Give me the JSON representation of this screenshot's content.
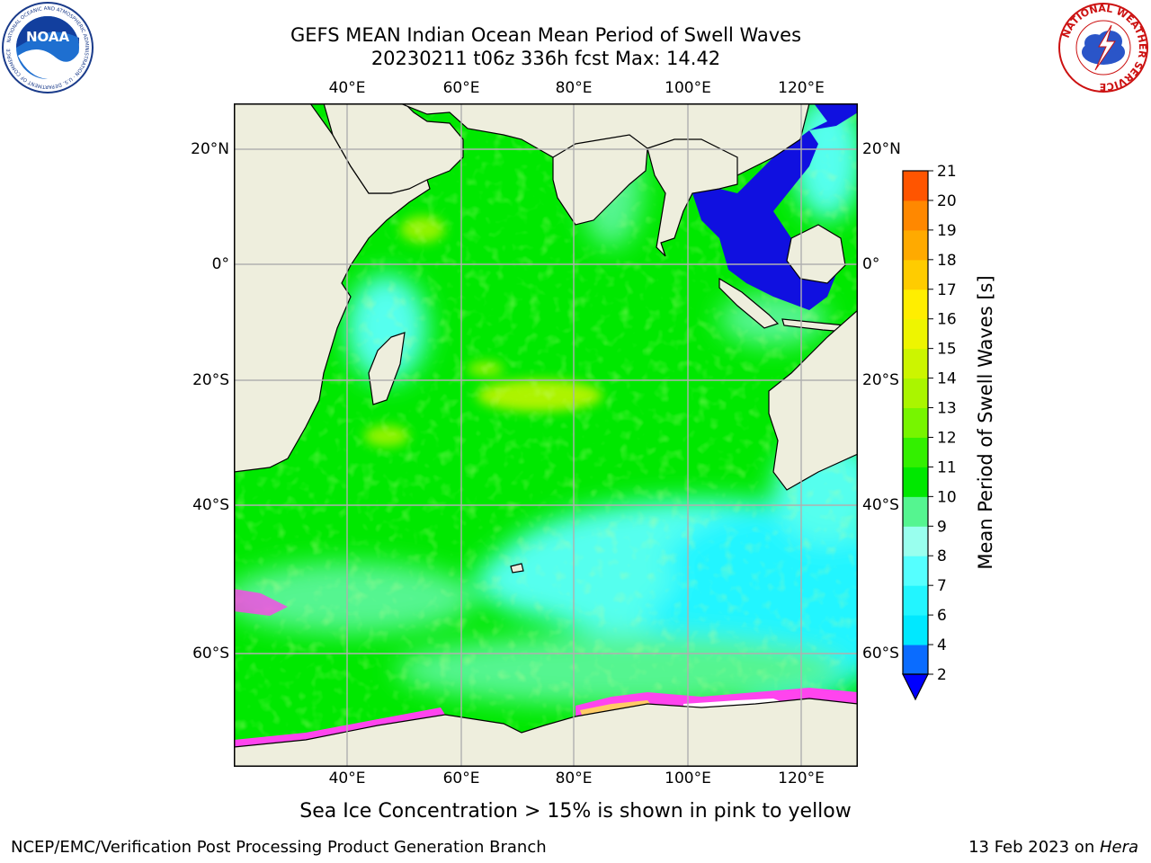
{
  "title": {
    "line1": "GEFS MEAN Indian Ocean Mean Period of Swell Waves",
    "line2": "20230211 t06z 336h fcst   Max: 14.42"
  },
  "logos": {
    "noaa": {
      "text": "NOAA",
      "ring_text": "NATIONAL OCEANIC AND ATMOSPHERIC ADMINISTRATION · U.S. DEPARTMENT OF COMMERCE"
    },
    "nws": {
      "ring_text": "NATIONAL WEATHER SERVICE"
    }
  },
  "map": {
    "lon_ticks_top": [
      "40°E",
      "60°E",
      "80°E",
      "100°E",
      "120°E"
    ],
    "lon_ticks_bottom": [
      "40°E",
      "60°E",
      "80°E",
      "100°E",
      "120°E"
    ],
    "lat_ticks_left": [
      "20°N",
      "0°",
      "20°S",
      "40°S",
      "60°S"
    ],
    "lat_ticks_right": [
      "20°N",
      "0°",
      "20°S",
      "40°S",
      "60°S"
    ],
    "colors": {
      "land": "#eeeedd",
      "grid": "#b0b0b0",
      "sea_ice": "#ff44ee"
    }
  },
  "colorbar": {
    "label": "Mean Period of Swell Waves [s]",
    "tick_labels": [
      "2",
      "4",
      "6",
      "7",
      "8",
      "9",
      "10",
      "11",
      "12",
      "13",
      "14",
      "15",
      "16",
      "17",
      "18",
      "19",
      "20",
      "21"
    ],
    "bin_colors": [
      "#0a6cff",
      "#00e8ff",
      "#22f5ff",
      "#55ffff",
      "#99ffee",
      "#55f590",
      "#00e800",
      "#33f000",
      "#77f500",
      "#aaf500",
      "#ccf500",
      "#eef500",
      "#ffee00",
      "#ffcc00",
      "#ffaa00",
      "#ff8800",
      "#ff5500",
      "#ff2200",
      "#ff0000"
    ],
    "underflow_color": "#0000ff"
  },
  "footer": {
    "ice_note": "Sea Ice Concentration > 15% is shown in pink to yellow",
    "credit": "NCEP/EMC/Verification Post Processing Product Generation Branch",
    "date_prefix": "13 Feb 2023 on ",
    "host": "Hera"
  }
}
